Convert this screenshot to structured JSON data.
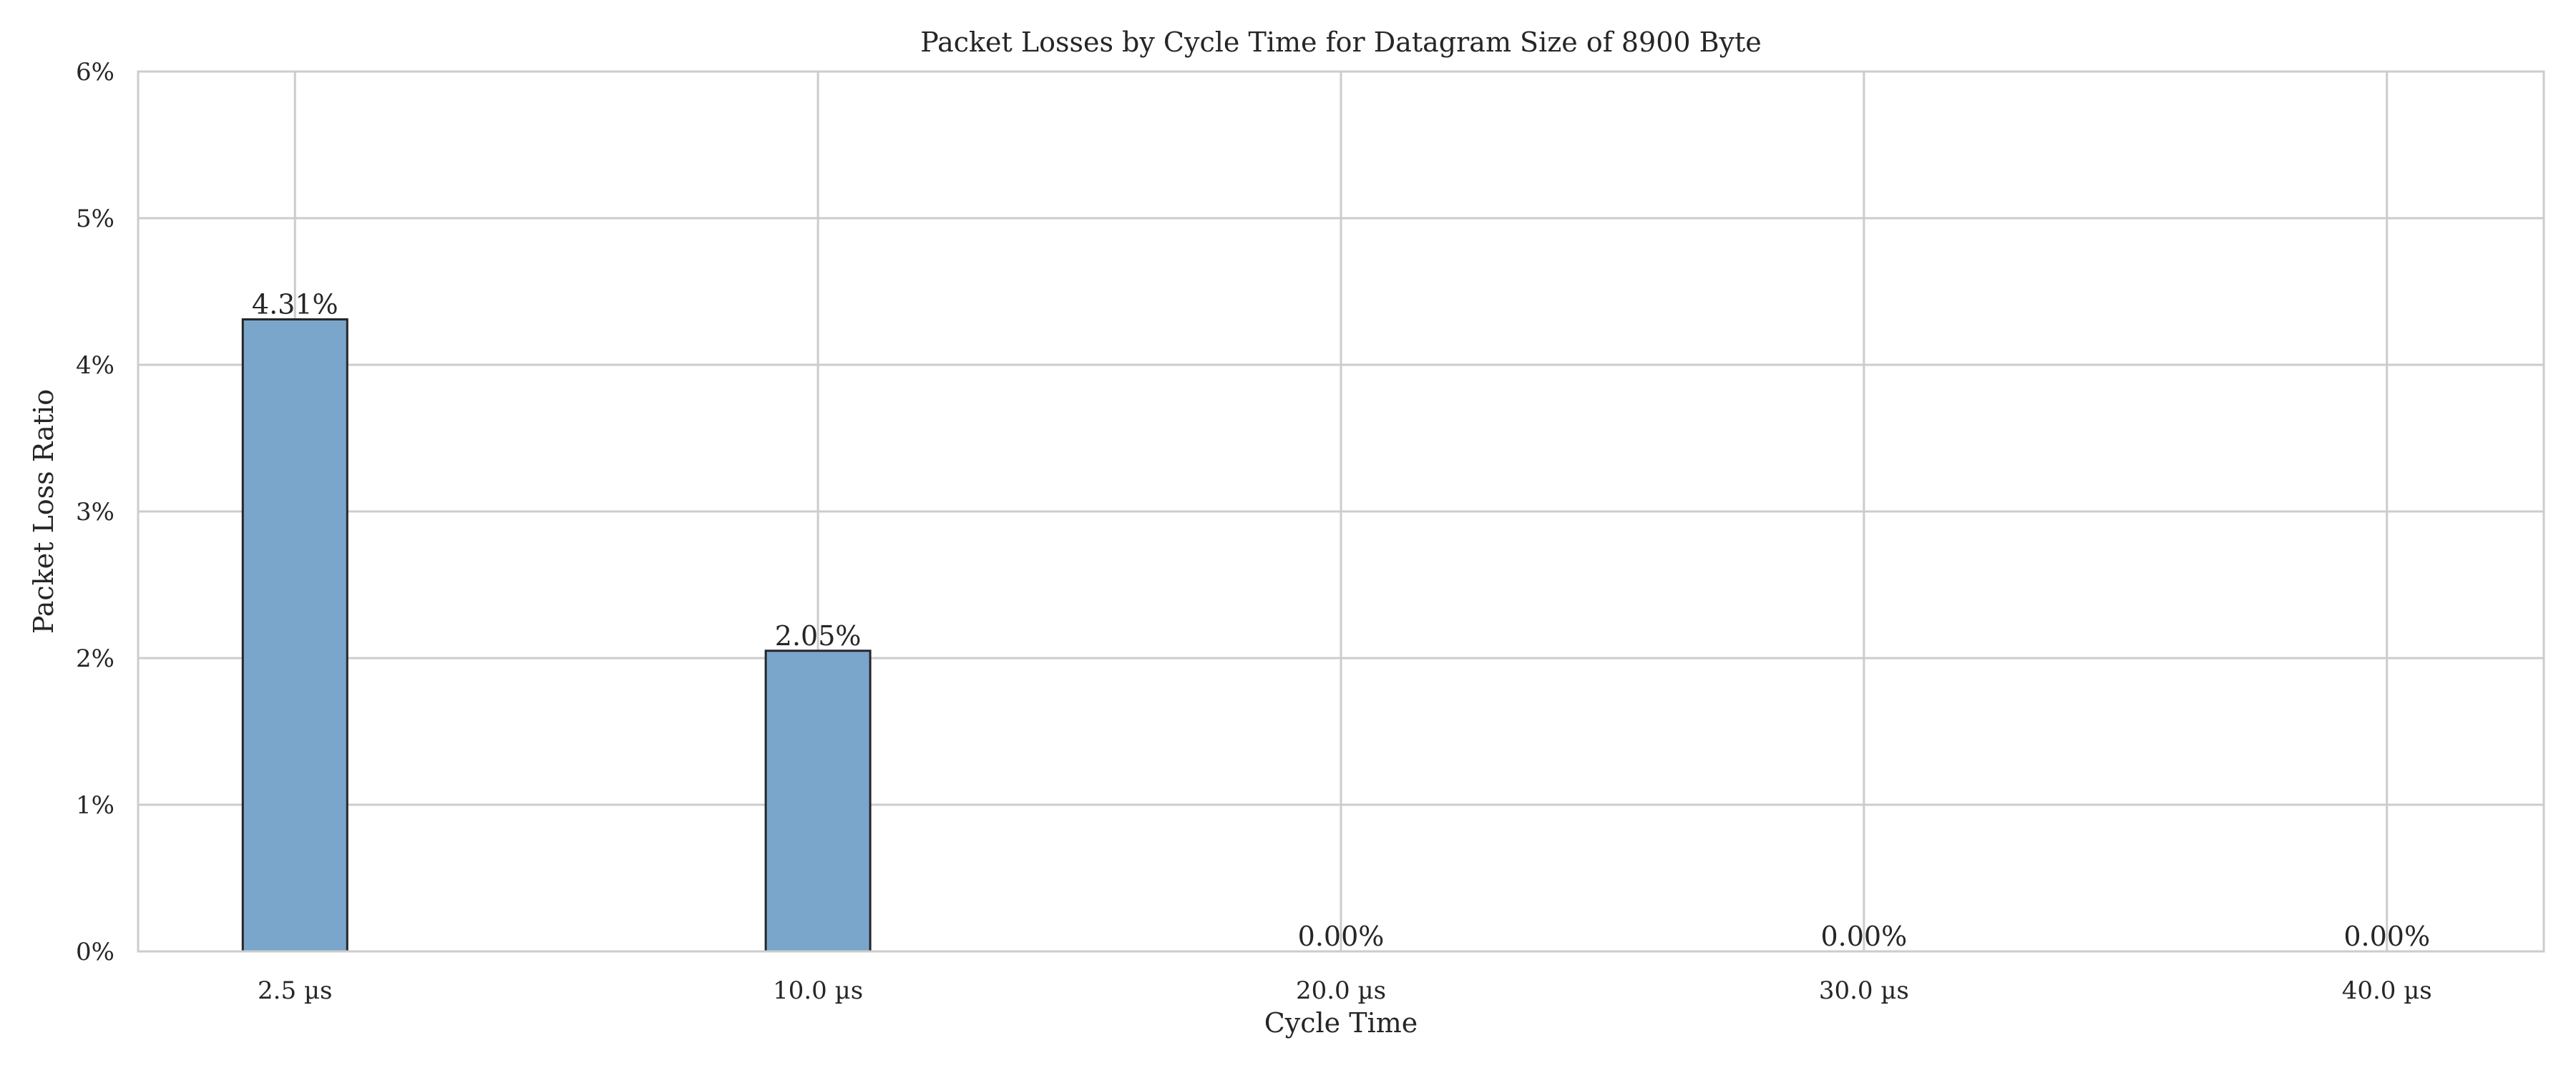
{
  "chart_data": {
    "type": "bar",
    "title": "Packet Losses by Cycle Time for Datagram Size of 8900 Byte",
    "xlabel": "Cycle Time",
    "ylabel": "Packet Loss Ratio",
    "categories": [
      "2.5 µs",
      "10.0 µs",
      "20.0 µs",
      "30.0 µs",
      "40.0 µs"
    ],
    "values": [
      4.31,
      2.05,
      0.0,
      0.0,
      0.0
    ],
    "value_labels": [
      "4.31%",
      "2.05%",
      "0.00%",
      "0.00%",
      "0.00%"
    ],
    "ylim": [
      0,
      6
    ],
    "yticks": [
      0,
      1,
      2,
      3,
      4,
      5,
      6
    ],
    "ytick_labels": [
      "0%",
      "1%",
      "2%",
      "3%",
      "4%",
      "5%",
      "6%"
    ],
    "grid": true,
    "bar_color": "#7aa6cc",
    "edge_color": "#262626"
  }
}
